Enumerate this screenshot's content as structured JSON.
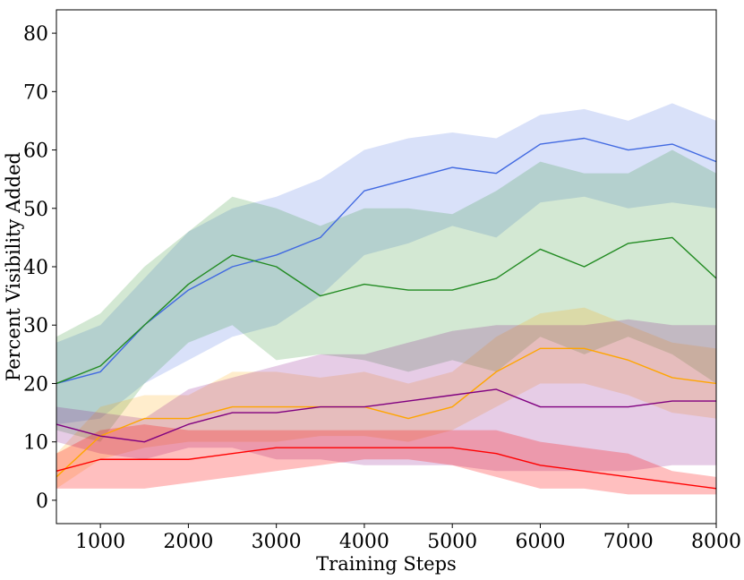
{
  "chart_data": {
    "type": "line",
    "title": "",
    "xlabel": "Training Steps",
    "ylabel": "Percent Visibility Added",
    "xlim": [
      500,
      8000
    ],
    "ylim": [
      -4,
      84
    ],
    "xticks": [
      1000,
      2000,
      3000,
      4000,
      5000,
      6000,
      7000,
      8000
    ],
    "yticks": [
      0,
      10,
      20,
      30,
      40,
      50,
      60,
      70,
      80
    ],
    "grid": false,
    "legend": "none",
    "series": [
      {
        "color": "#4169e1",
        "band_alpha": 0.2,
        "x": [
          500,
          1000,
          1500,
          2000,
          2500,
          3000,
          3500,
          4000,
          4500,
          5000,
          5500,
          6000,
          6500,
          7000,
          7500,
          8000
        ],
        "values": [
          20,
          22,
          30,
          36,
          40,
          42,
          45,
          53,
          55,
          57,
          56,
          61,
          62,
          60,
          61,
          58
        ],
        "lower": [
          13,
          14,
          20,
          24,
          28,
          30,
          35,
          42,
          44,
          47,
          45,
          51,
          52,
          50,
          51,
          50
        ],
        "upper": [
          27,
          30,
          38,
          46,
          50,
          52,
          55,
          60,
          62,
          63,
          62,
          66,
          67,
          65,
          68,
          65
        ]
      },
      {
        "color": "#228b22",
        "band_alpha": 0.2,
        "x": [
          500,
          1000,
          1500,
          2000,
          2500,
          3000,
          3500,
          4000,
          4500,
          5000,
          5500,
          6000,
          6500,
          7000,
          7500,
          8000
        ],
        "values": [
          20,
          23,
          30,
          37,
          42,
          40,
          35,
          37,
          36,
          36,
          38,
          43,
          40,
          44,
          45,
          38
        ],
        "lower": [
          12,
          10,
          20,
          27,
          30,
          24,
          25,
          24,
          22,
          24,
          22,
          28,
          25,
          28,
          25,
          20
        ],
        "upper": [
          28,
          32,
          40,
          46,
          52,
          50,
          47,
          50,
          50,
          49,
          53,
          58,
          56,
          56,
          60,
          56
        ]
      },
      {
        "color": "#ffa500",
        "band_alpha": 0.2,
        "x": [
          500,
          1000,
          1500,
          2000,
          2500,
          3000,
          3500,
          4000,
          4500,
          5000,
          5500,
          6000,
          6500,
          7000,
          7500,
          8000
        ],
        "values": [
          4,
          11,
          14,
          14,
          16,
          16,
          16,
          16,
          14,
          16,
          22,
          26,
          26,
          24,
          21,
          20
        ],
        "lower": [
          2,
          7,
          9,
          10,
          10,
          10,
          11,
          11,
          10,
          12,
          16,
          20,
          20,
          18,
          15,
          14
        ],
        "upper": [
          8,
          16,
          18,
          18,
          22,
          22,
          21,
          22,
          20,
          22,
          28,
          32,
          33,
          30,
          27,
          26
        ]
      },
      {
        "color": "#800080",
        "band_alpha": 0.2,
        "x": [
          500,
          1000,
          1500,
          2000,
          2500,
          3000,
          3500,
          4000,
          4500,
          5000,
          5500,
          6000,
          6500,
          7000,
          7500,
          8000
        ],
        "values": [
          13,
          11,
          10,
          13,
          15,
          15,
          16,
          16,
          17,
          18,
          19,
          16,
          16,
          16,
          17,
          17
        ],
        "lower": [
          10,
          8,
          7,
          9,
          9,
          7,
          7,
          6,
          6,
          6,
          5,
          5,
          5,
          5,
          6,
          6
        ],
        "upper": [
          16,
          15,
          14,
          19,
          21,
          23,
          25,
          25,
          27,
          29,
          30,
          30,
          30,
          31,
          30,
          30
        ]
      },
      {
        "color": "#ff0000",
        "band_alpha": 0.25,
        "x": [
          500,
          1000,
          1500,
          2000,
          2500,
          3000,
          3500,
          4000,
          4500,
          5000,
          5500,
          6000,
          6500,
          7000,
          7500,
          8000
        ],
        "values": [
          5,
          7,
          7,
          7,
          8,
          9,
          9,
          9,
          9,
          9,
          8,
          6,
          5,
          4,
          3,
          2
        ],
        "lower": [
          2,
          2,
          2,
          3,
          4,
          5,
          6,
          7,
          7,
          6,
          4,
          2,
          2,
          1,
          1,
          1
        ],
        "upper": [
          8,
          12,
          13,
          12,
          12,
          12,
          12,
          12,
          12,
          12,
          12,
          10,
          9,
          8,
          5,
          4
        ]
      }
    ]
  }
}
